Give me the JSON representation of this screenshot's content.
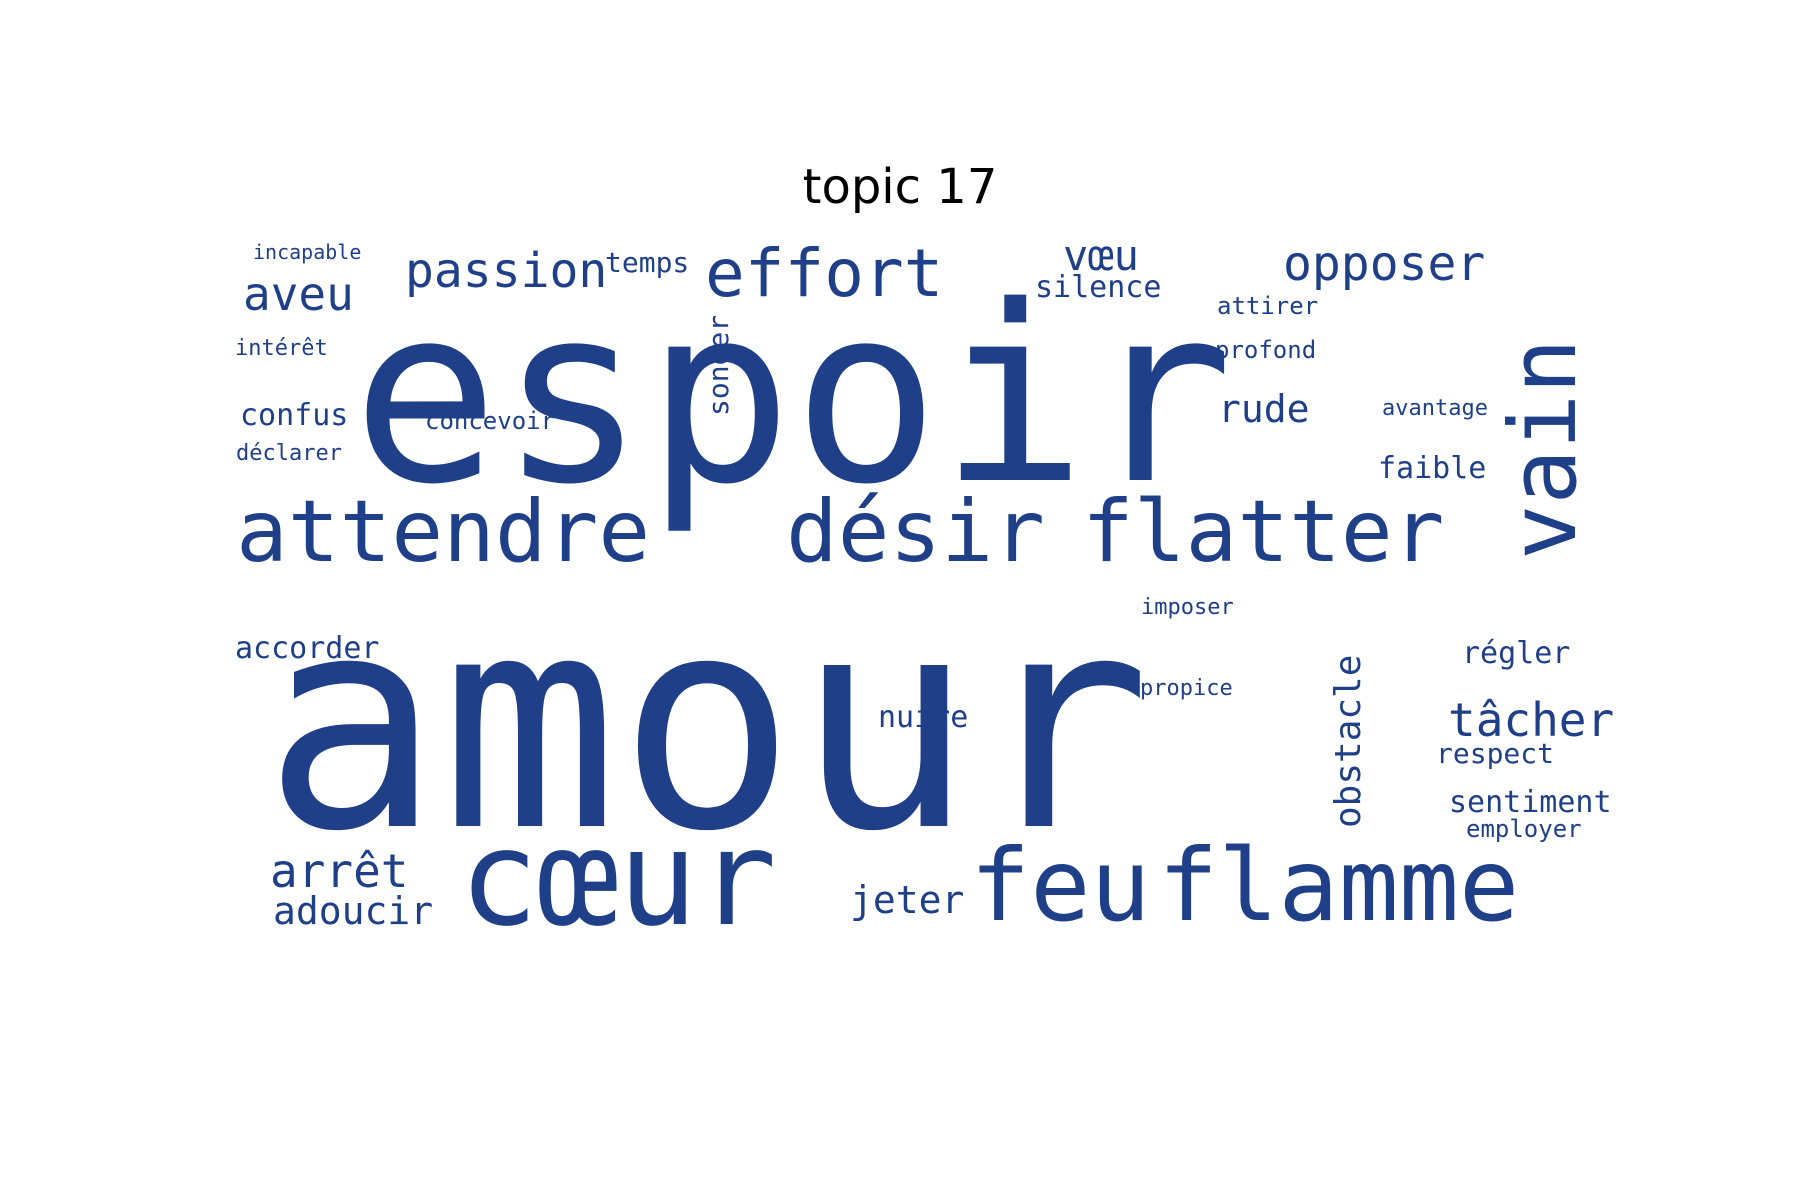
{
  "title": "topic 17",
  "word_color": "#1f4088",
  "words": [
    {
      "text": "amour",
      "vertical": false
    },
    {
      "text": "espoir",
      "vertical": false
    },
    {
      "text": "cœur",
      "vertical": false
    },
    {
      "text": "flamme",
      "vertical": false
    },
    {
      "text": "feu",
      "vertical": false
    },
    {
      "text": "attendre",
      "vertical": false
    },
    {
      "text": "désir",
      "vertical": false
    },
    {
      "text": "flatter",
      "vertical": false
    },
    {
      "text": "vain",
      "vertical": true
    },
    {
      "text": "effort",
      "vertical": false
    },
    {
      "text": "passion",
      "vertical": false
    },
    {
      "text": "opposer",
      "vertical": false
    },
    {
      "text": "aveu",
      "vertical": false
    },
    {
      "text": "vœu",
      "vertical": false
    },
    {
      "text": "arrêt",
      "vertical": false
    },
    {
      "text": "adoucir",
      "vertical": false
    },
    {
      "text": "tâcher",
      "vertical": false
    },
    {
      "text": "rude",
      "vertical": false
    },
    {
      "text": "obstacle",
      "vertical": true
    },
    {
      "text": "jeter",
      "vertical": false
    },
    {
      "text": "silence",
      "vertical": false
    },
    {
      "text": "confus",
      "vertical": false
    },
    {
      "text": "accorder",
      "vertical": false
    },
    {
      "text": "nuire",
      "vertical": false
    },
    {
      "text": "sentiment",
      "vertical": false
    },
    {
      "text": "faible",
      "vertical": false
    },
    {
      "text": "régler",
      "vertical": false
    },
    {
      "text": "respect",
      "vertical": false
    },
    {
      "text": "songer",
      "vertical": true
    },
    {
      "text": "temps",
      "vertical": false
    },
    {
      "text": "employer",
      "vertical": false
    },
    {
      "text": "profond",
      "vertical": false
    },
    {
      "text": "attirer",
      "vertical": false
    },
    {
      "text": "concevoir",
      "vertical": false
    },
    {
      "text": "déclarer",
      "vertical": false
    },
    {
      "text": "intérêt",
      "vertical": false
    },
    {
      "text": "imposer",
      "vertical": false
    },
    {
      "text": "propice",
      "vertical": false
    },
    {
      "text": "avantage",
      "vertical": false
    },
    {
      "text": "incapable",
      "vertical": false
    }
  ]
}
